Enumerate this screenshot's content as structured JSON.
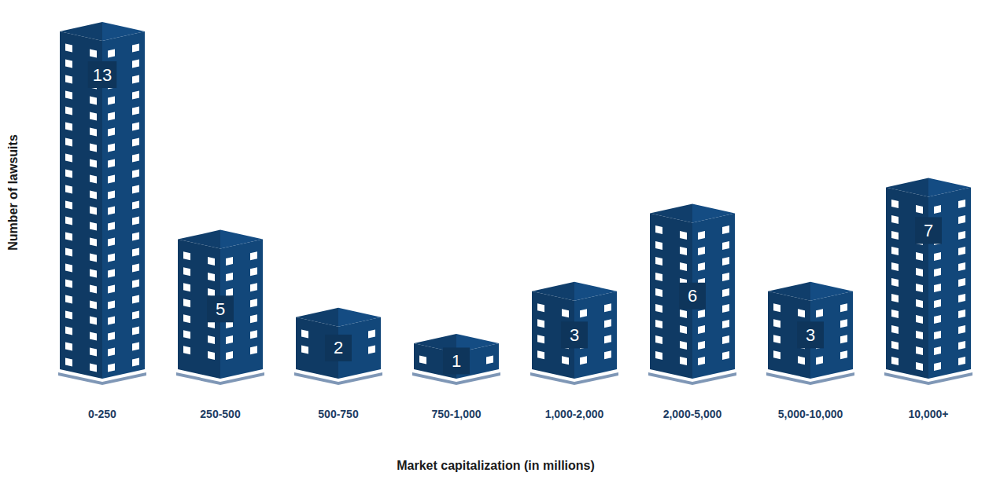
{
  "chart_data": {
    "type": "bar",
    "x_label": "Market capitalization (in millions)",
    "y_label": "Number of lawsuits",
    "categories": [
      "0-250",
      "250-500",
      "500-750",
      "750-1,000",
      "1,000-2,000",
      "2,000-5,000",
      "5,000-10,000",
      "10,000+"
    ],
    "values": [
      13,
      5,
      2,
      1,
      3,
      6,
      3,
      7
    ],
    "color": "#0f3a64",
    "data_labels": true,
    "tick_labels": "x",
    "grid": false
  }
}
